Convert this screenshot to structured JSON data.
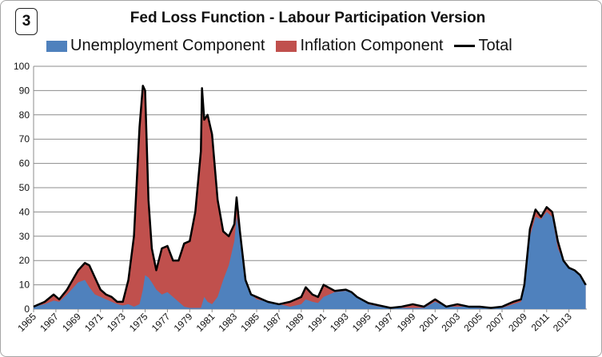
{
  "badge": "3",
  "chart_data": {
    "type": "area",
    "title": "Fed Loss Function - Labour Participation Version",
    "ylim": [
      0,
      100
    ],
    "y_ticks": [
      "0",
      "10",
      "20",
      "30",
      "40",
      "50",
      "60",
      "70",
      "80",
      "90",
      "100"
    ],
    "x_range": [
      1965,
      2014.6
    ],
    "x_tick_labels": [
      "1965",
      "1967",
      "1969",
      "1971",
      "1973",
      "1975",
      "1977",
      "1979",
      "1981",
      "1983",
      "1985",
      "1987",
      "1989",
      "1991",
      "1993",
      "1995",
      "1997",
      "1999",
      "2001",
      "2003",
      "2005",
      "2007",
      "2009",
      "2011",
      "2013"
    ],
    "grid": true,
    "legend_position": "top",
    "colors": {
      "unemployment": "#4f81bd",
      "inflation": "#c0504d",
      "total": "#000000"
    },
    "series": [
      {
        "name": "Unemployment Component",
        "kind": "area"
      },
      {
        "name": "Inflation Component",
        "kind": "area"
      },
      {
        "name": "Total",
        "kind": "line"
      }
    ],
    "x": [
      1965.0,
      1966.0,
      1966.8,
      1967.3,
      1968.0,
      1969.0,
      1969.6,
      1970.0,
      1970.5,
      1971.0,
      1971.5,
      1972.0,
      1972.5,
      1973.0,
      1973.5,
      1974.0,
      1974.5,
      1974.8,
      1975.0,
      1975.3,
      1975.6,
      1976.0,
      1976.5,
      1977.0,
      1977.5,
      1978.0,
      1978.5,
      1979.0,
      1979.5,
      1980.0,
      1980.1,
      1980.3,
      1980.6,
      1981.0,
      1981.5,
      1982.0,
      1982.5,
      1983.0,
      1983.2,
      1983.5,
      1984.0,
      1984.5,
      1985.0,
      1986.0,
      1987.0,
      1988.0,
      1989.0,
      1989.4,
      1990.0,
      1990.5,
      1991.0,
      1992.0,
      1993.0,
      1993.5,
      1994.0,
      1995.0,
      1996.0,
      1997.0,
      1998.0,
      1999.0,
      2000.0,
      2001.0,
      2002.0,
      2003.0,
      2004.0,
      2005.0,
      2006.0,
      2007.0,
      2008.0,
      2008.7,
      2009.0,
      2009.5,
      2010.0,
      2010.5,
      2011.0,
      2011.5,
      2012.0,
      2012.5,
      2013.0,
      2013.5,
      2014.0,
      2014.5
    ],
    "unemployment": [
      1,
      2,
      3.5,
      3,
      6,
      11,
      12,
      9,
      6,
      5,
      4,
      3,
      2,
      1.5,
      2,
      1,
      2,
      8,
      14,
      13,
      11,
      8,
      6,
      7,
      5,
      3,
      1,
      0.5,
      0.5,
      0.5,
      2,
      5,
      3,
      2,
      5,
      12,
      18,
      28,
      38,
      30,
      12,
      6,
      4,
      3,
      2,
      1,
      2,
      4,
      3,
      2.5,
      5,
      7,
      7.5,
      7,
      5,
      2,
      1,
      0.5,
      0.5,
      0.5,
      0.5,
      3,
      1,
      1,
      1,
      0.5,
      0.5,
      0.5,
      2,
      3,
      10,
      30,
      38,
      37,
      40,
      38,
      25,
      20,
      17,
      16,
      14,
      10
    ],
    "total": [
      1,
      3,
      6,
      4,
      8,
      16,
      19,
      18,
      13,
      8,
      6,
      5,
      3,
      3,
      12,
      30,
      75,
      92,
      90,
      45,
      25,
      16,
      25,
      26,
      20,
      20,
      27,
      28,
      40,
      65,
      91,
      78,
      80,
      72,
      45,
      32,
      30,
      35,
      46,
      32,
      12,
      6,
      5,
      3,
      2,
      3,
      5,
      9,
      6,
      5,
      10,
      7.5,
      8,
      7,
      5,
      2.5,
      1.5,
      0.5,
      1,
      2,
      1,
      4,
      1,
      2,
      1,
      1,
      0.5,
      1,
      3,
      4,
      10,
      33,
      41,
      38,
      42,
      40,
      28,
      20,
      17,
      16,
      14,
      10
    ]
  }
}
